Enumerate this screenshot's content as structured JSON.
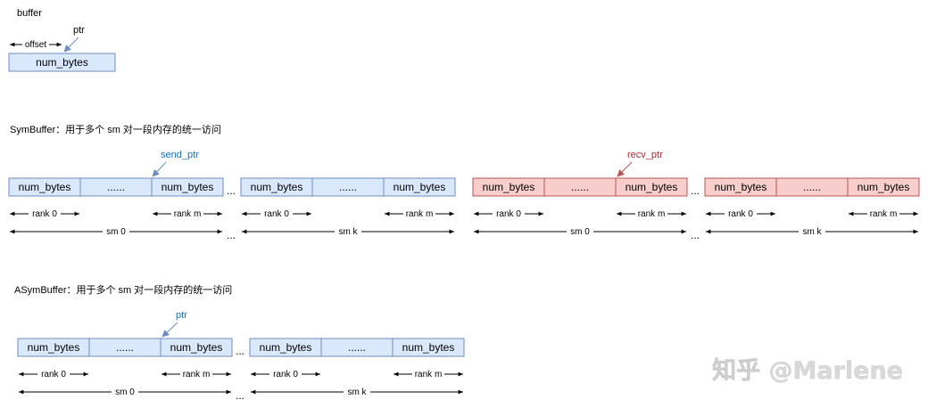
{
  "colors": {
    "blue_fill": "#dae8fc",
    "blue_stroke": "#6c8ebf",
    "red_fill": "#f8cecc",
    "red_stroke": "#b85450",
    "blue_label": "#1a6fb8",
    "red_label": "#b5272d",
    "arrow_blue": "#6c8ebf",
    "arrow_red": "#b85450",
    "line": "#000000",
    "watermark": "#d9d9d9"
  },
  "buffer": {
    "title": "buffer",
    "offset_label": "offset",
    "ptr_label": "ptr",
    "cell_label": "num_bytes"
  },
  "sym_buffer": {
    "title": "SymBuffer：用于多个 sm 对一段内存的统一访问",
    "send_ptr_label": "send_ptr",
    "recv_ptr_label": "recv_ptr",
    "cells": [
      "num_bytes",
      "......",
      "num_bytes"
    ],
    "gap": "...",
    "rank_first": "rank 0",
    "rank_last": "rank m",
    "sm_first": "sm 0",
    "sm_last": "sm k"
  },
  "asym_buffer": {
    "title": "ASymBuffer：用于多个 sm 对一段内存的统一访问",
    "ptr_label": "ptr",
    "cells": [
      "num_bytes",
      "......",
      "num_bytes"
    ],
    "gap": "...",
    "rank_first": "rank 0",
    "rank_last": "rank m",
    "sm_first": "sm 0",
    "sm_last": "sm k"
  },
  "watermark": "知乎 @Marlene"
}
